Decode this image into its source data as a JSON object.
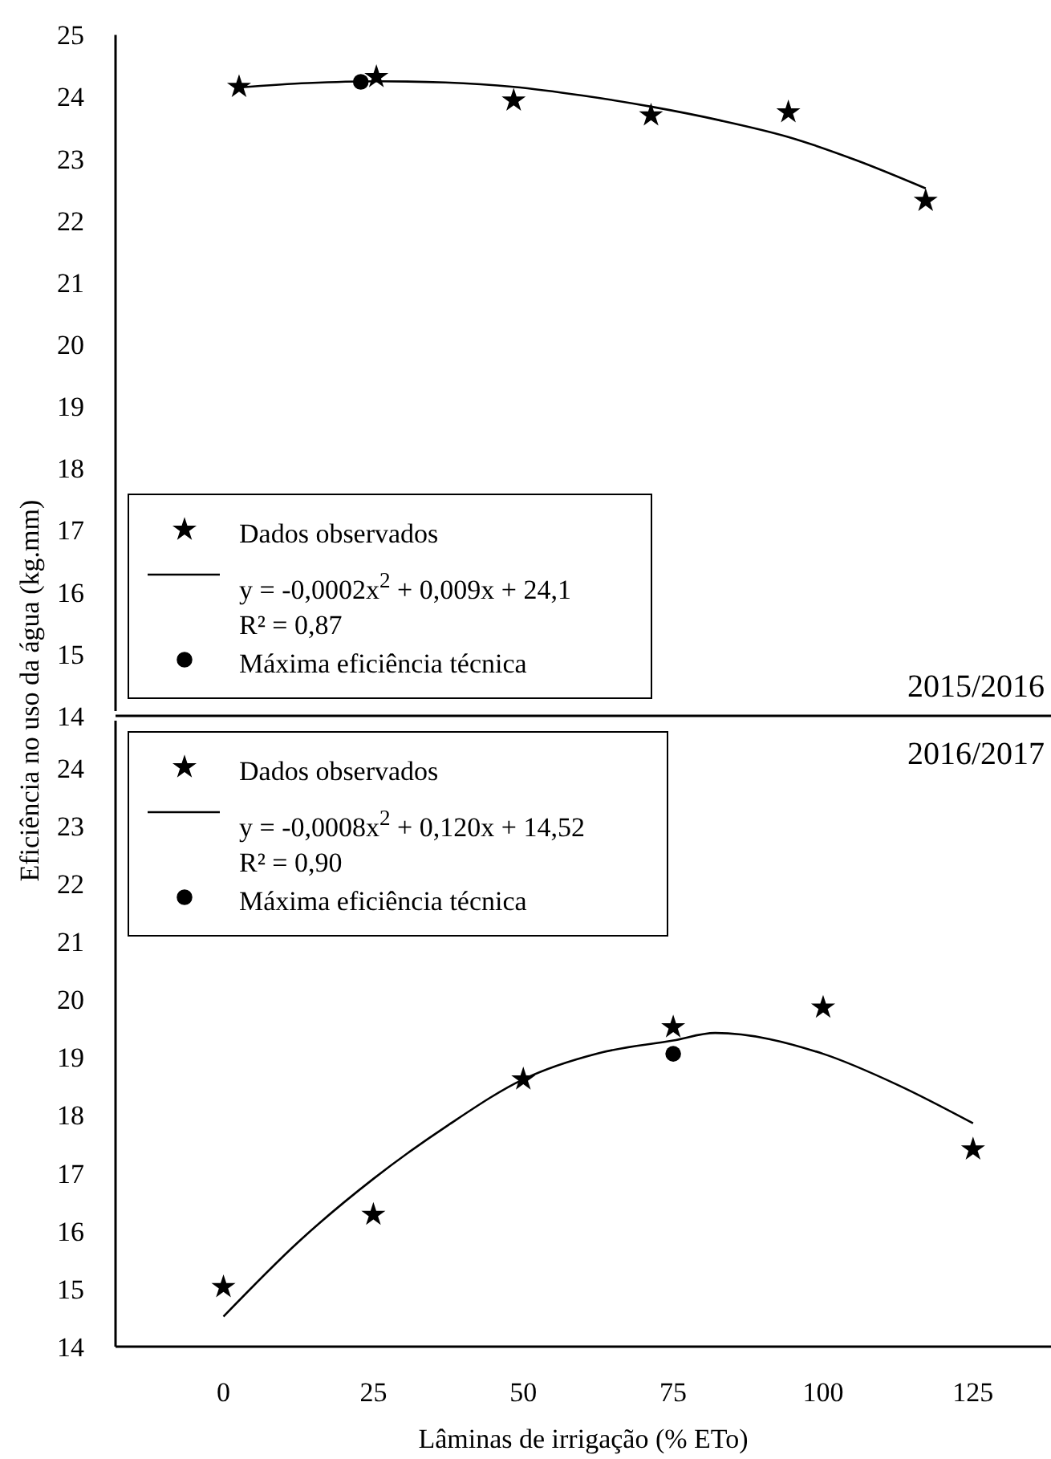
{
  "chart_data": [
    {
      "type": "scatter",
      "ylabel": "Eficiência no uso da água (kg.mm)",
      "annotations": [
        "R² = 0,87",
        "2015/2016"
      ],
      "xlim": [
        -18,
        138
      ],
      "ylim": [
        14,
        25
      ],
      "yticks": [
        14,
        15,
        16,
        17,
        18,
        19,
        20,
        21,
        22,
        23,
        24,
        25
      ],
      "tick_labels": "y",
      "legend": "bottom left",
      "series": [
        {
          "name": "Dados observados",
          "marker": "star",
          "color": "#000000",
          "x": [
            2.6,
            25.5,
            48.4,
            71.3,
            94.2,
            117.1
          ],
          "values": [
            24.16,
            24.32,
            23.94,
            23.7,
            23.75,
            22.32
          ]
        },
        {
          "name": "y = -0,0002x$^{2}$ + 0,009x + 24,1",
          "type": "line",
          "marker": "none",
          "line_style": "solid",
          "color": "#000000",
          "x": [
            2.6,
            14.05,
            25.5,
            37,
            48.4,
            59.85,
            71.3,
            82.75,
            94.2,
            105.65,
            117.1
          ],
          "values": [
            24.15,
            24.22,
            24.25,
            24.23,
            24.16,
            24.02,
            23.84,
            23.62,
            23.35,
            22.97,
            22.52
          ]
        },
        {
          "name": "Máxima eficiência técnica",
          "marker": "circle",
          "color": "#000000",
          "x": [
            22.9
          ],
          "values": [
            24.24
          ]
        }
      ]
    },
    {
      "type": "scatter",
      "xlabel": "Lâminas de irrigação (% ETo)",
      "annotations": [
        "R² = 0,90",
        "2016/2017"
      ],
      "xlim": [
        -18,
        138
      ],
      "xticks": [
        0,
        25,
        50,
        75,
        100,
        125
      ],
      "ylim": [
        14,
        24.9
      ],
      "yticks": [
        14,
        15,
        16,
        17,
        18,
        19,
        20,
        21,
        22,
        23,
        24
      ],
      "legend": "top left",
      "series": [
        {
          "name": "Dados observados",
          "marker": "star",
          "color": "#000000",
          "x": [
            0,
            25,
            50,
            75,
            100,
            125
          ],
          "values": [
            15.03,
            16.28,
            18.62,
            19.52,
            19.86,
            17.41
          ]
        },
        {
          "name": "y = -0,0008x$^{2}$ + 0,120x + 14,52",
          "type": "line",
          "marker": "none",
          "line_style": "solid",
          "color": "#000000",
          "x": [
            0,
            12.5,
            25,
            37.5,
            50,
            62.5,
            75,
            82,
            100,
            112.5,
            125
          ],
          "values": [
            14.52,
            15.81,
            16.9,
            17.83,
            18.62,
            19.07,
            19.29,
            19.42,
            19.06,
            18.52,
            17.86
          ]
        },
        {
          "name": "Máxima eficiência técnica",
          "marker": "circle",
          "color": "#000000",
          "x": [
            75
          ],
          "values": [
            19.06
          ]
        }
      ]
    }
  ]
}
